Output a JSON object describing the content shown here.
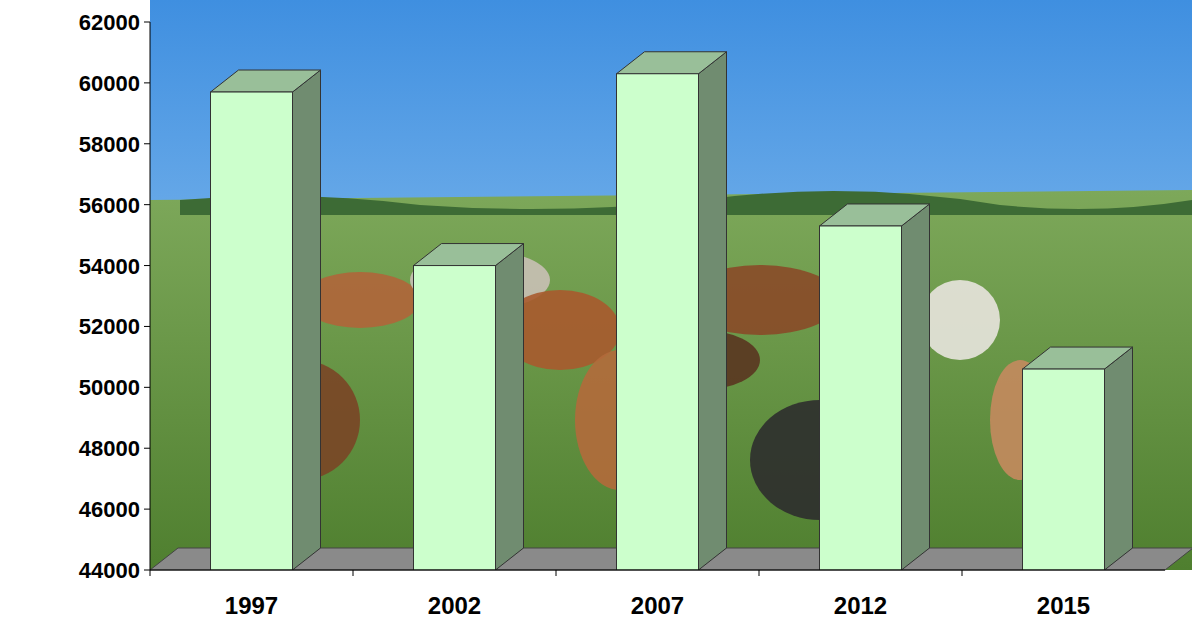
{
  "chart_data": {
    "type": "bar",
    "categories": [
      "1997",
      "2002",
      "2007",
      "2012",
      "2015"
    ],
    "values": [
      59700,
      54000,
      60300,
      55300,
      50600
    ],
    "color": "#ccffcc",
    "ylim": [
      44000,
      62000
    ],
    "yticks": [
      44000,
      46000,
      48000,
      50000,
      52000,
      54000,
      56000,
      58000,
      60000,
      62000
    ],
    "grid": false
  }
}
